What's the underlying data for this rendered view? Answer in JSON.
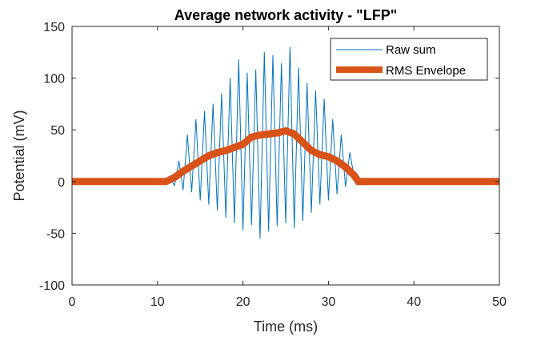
{
  "chart_data": {
    "type": "line",
    "title": "Average network activity - \"LFP\"",
    "xlabel": "Time (ms)",
    "ylabel": "Potential (mV)",
    "xlim": [
      0,
      50
    ],
    "ylim": [
      -100,
      150
    ],
    "xticks": [
      0,
      10,
      20,
      30,
      40,
      50
    ],
    "yticks": [
      -100,
      -50,
      0,
      50,
      100,
      150
    ],
    "legend_position": "top-right",
    "grid": false,
    "colors": {
      "raw": "#0072BD",
      "rms": "#D95319",
      "axis": "#262626"
    },
    "series": [
      {
        "name": "Raw sum",
        "style": "thin-line",
        "x": [
          0,
          11.0,
          11.5,
          12.0,
          12.5,
          13.0,
          13.5,
          14.0,
          14.5,
          15.0,
          15.5,
          16.0,
          16.5,
          17.0,
          17.5,
          18.0,
          18.5,
          19.0,
          19.5,
          20.0,
          20.5,
          21.0,
          21.5,
          22.0,
          22.5,
          23.0,
          23.5,
          24.0,
          24.5,
          25.0,
          25.5,
          26.0,
          26.5,
          27.0,
          27.5,
          28.0,
          28.5,
          29.0,
          29.5,
          30.0,
          30.5,
          31.0,
          31.5,
          32.0,
          32.5,
          33.0,
          33.5,
          50
        ],
        "y": [
          0,
          0,
          3,
          -4,
          20,
          -8,
          45,
          -10,
          60,
          -18,
          68,
          -22,
          75,
          -28,
          85,
          -35,
          100,
          -40,
          118,
          -47,
          105,
          -42,
          108,
          -55,
          125,
          -48,
          122,
          -43,
          114,
          -40,
          130,
          -45,
          110,
          -38,
          95,
          -30,
          88,
          -22,
          80,
          -18,
          60,
          -12,
          45,
          -5,
          28,
          5,
          0,
          0
        ]
      },
      {
        "name": "RMS Envelope",
        "style": "thick-line",
        "x": [
          0,
          11.0,
          12.0,
          13.0,
          14.0,
          15.0,
          16.0,
          17.0,
          18.0,
          19.0,
          20.0,
          21.0,
          22.0,
          23.0,
          24.0,
          25.0,
          26.0,
          27.0,
          28.0,
          29.0,
          30.0,
          31.0,
          32.0,
          33.0,
          33.5,
          50
        ],
        "y": [
          0,
          0,
          4,
          10,
          15,
          20,
          25,
          28,
          30,
          33,
          36,
          43,
          45,
          46,
          47,
          49,
          46,
          38,
          30,
          26,
          24,
          20,
          14,
          6,
          0,
          0
        ]
      }
    ]
  }
}
